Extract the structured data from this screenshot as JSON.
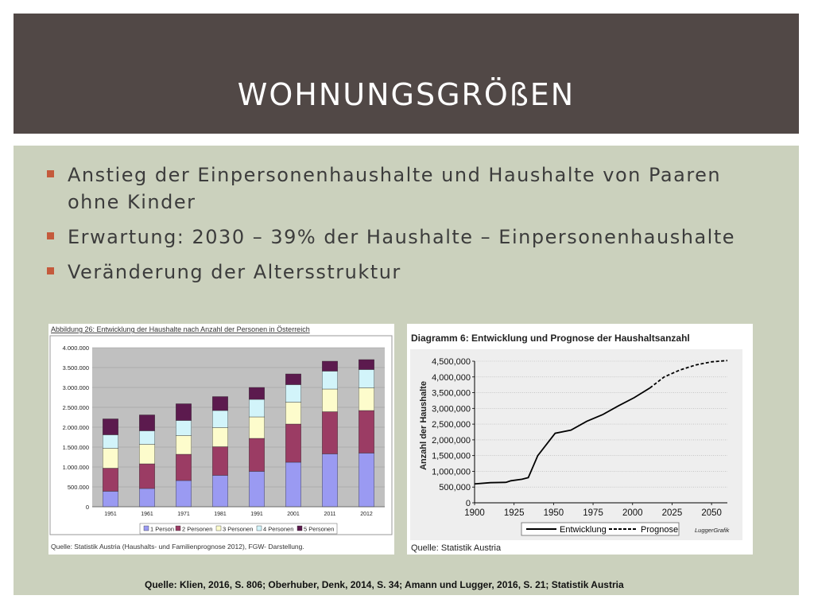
{
  "slide": {
    "title": "WOHNUNGSGRÖßEN",
    "bullets": [
      "Anstieg der Einpersonenhaushalte und Haushalte von Paaren ohne Kinder",
      "Erwartung: 2030 – 39% der Haushalte – Einpersonenhaushalte",
      "Veränderung der Altersstruktur"
    ],
    "footer_source": "Quelle: Klien, 2016, S. 806; Oberhuber, Denk, 2014, S. 34; Amann und Lugger, 2016, S. 21; Statistik Austria"
  },
  "colors": {
    "header_bg": "#514846",
    "content_bg": "#cbd1bd",
    "bullet_marker": "#c45a3c",
    "s1": "#9a9af2",
    "s2": "#9b3c64",
    "s3": "#fdfccc",
    "s4": "#d2f4fa",
    "s5": "#5c1a4e"
  },
  "chart_data": [
    {
      "type": "bar",
      "stacked": true,
      "title": "Abbildung 26: Entwicklung der Haushalte nach Anzahl der Personen in Österreich",
      "categories": [
        "1951",
        "1961",
        "1971",
        "1981",
        "1991",
        "2001",
        "2011",
        "2012"
      ],
      "series": [
        {
          "name": "1 Person",
          "values": [
            390000,
            460000,
            660000,
            790000,
            890000,
            1120000,
            1330000,
            1350000
          ]
        },
        {
          "name": "2 Personen",
          "values": [
            580000,
            620000,
            660000,
            720000,
            830000,
            960000,
            1060000,
            1070000
          ]
        },
        {
          "name": "3 Personen",
          "values": [
            500000,
            490000,
            470000,
            480000,
            540000,
            550000,
            570000,
            570000
          ]
        },
        {
          "name": "4 Personen",
          "values": [
            340000,
            340000,
            380000,
            430000,
            440000,
            440000,
            450000,
            460000
          ]
        },
        {
          "name": "5 Personen",
          "values": [
            400000,
            400000,
            420000,
            350000,
            300000,
            270000,
            250000,
            250000
          ]
        }
      ],
      "yticks": [
        "0",
        "500.000",
        "1.000.000",
        "1.500.000",
        "2.000.000",
        "2.500.000",
        "3.000.000",
        "3.500.000",
        "4.000.000"
      ],
      "ylim": [
        0,
        4000000
      ],
      "legend": "bottom",
      "source": "Quelle: Statistik Austria (Haushalts- und Familienprognose 2012), FGW- Darstellung."
    },
    {
      "type": "line",
      "title": "Diagramm 6: Entwicklung und Prognose der Haushaltsanzahl",
      "ylabel": "Anzahl der Haushalte",
      "xticks": [
        "1900",
        "1925",
        "1950",
        "1975",
        "2000",
        "2025",
        "2050"
      ],
      "yticks": [
        "0",
        "500,000",
        "1,000,000",
        "1,500,000",
        "2,000,000",
        "2,500,000",
        "3,000,000",
        "3,500,000",
        "4,000,000",
        "4,500,000"
      ],
      "xlim": [
        1900,
        2060
      ],
      "ylim": [
        0,
        4500000
      ],
      "series": [
        {
          "name": "Entwicklung",
          "style": "solid",
          "x": [
            1900,
            1910,
            1920,
            1923,
            1930,
            1934,
            1940,
            1951,
            1961,
            1971,
            1981,
            1991,
            2001,
            2011
          ],
          "values": [
            600000,
            640000,
            650000,
            700000,
            750000,
            800000,
            1500000,
            2210000,
            2310000,
            2590000,
            2800000,
            3080000,
            3340000,
            3650000
          ]
        },
        {
          "name": "Prognose",
          "style": "dashed",
          "x": [
            2011,
            2020,
            2030,
            2040,
            2050,
            2060
          ],
          "values": [
            3650000,
            4000000,
            4220000,
            4380000,
            4480000,
            4520000
          ]
        }
      ],
      "legend": "bottom",
      "brand": "LuggerGrafik",
      "source": "Quelle: Statistik Austria"
    }
  ]
}
